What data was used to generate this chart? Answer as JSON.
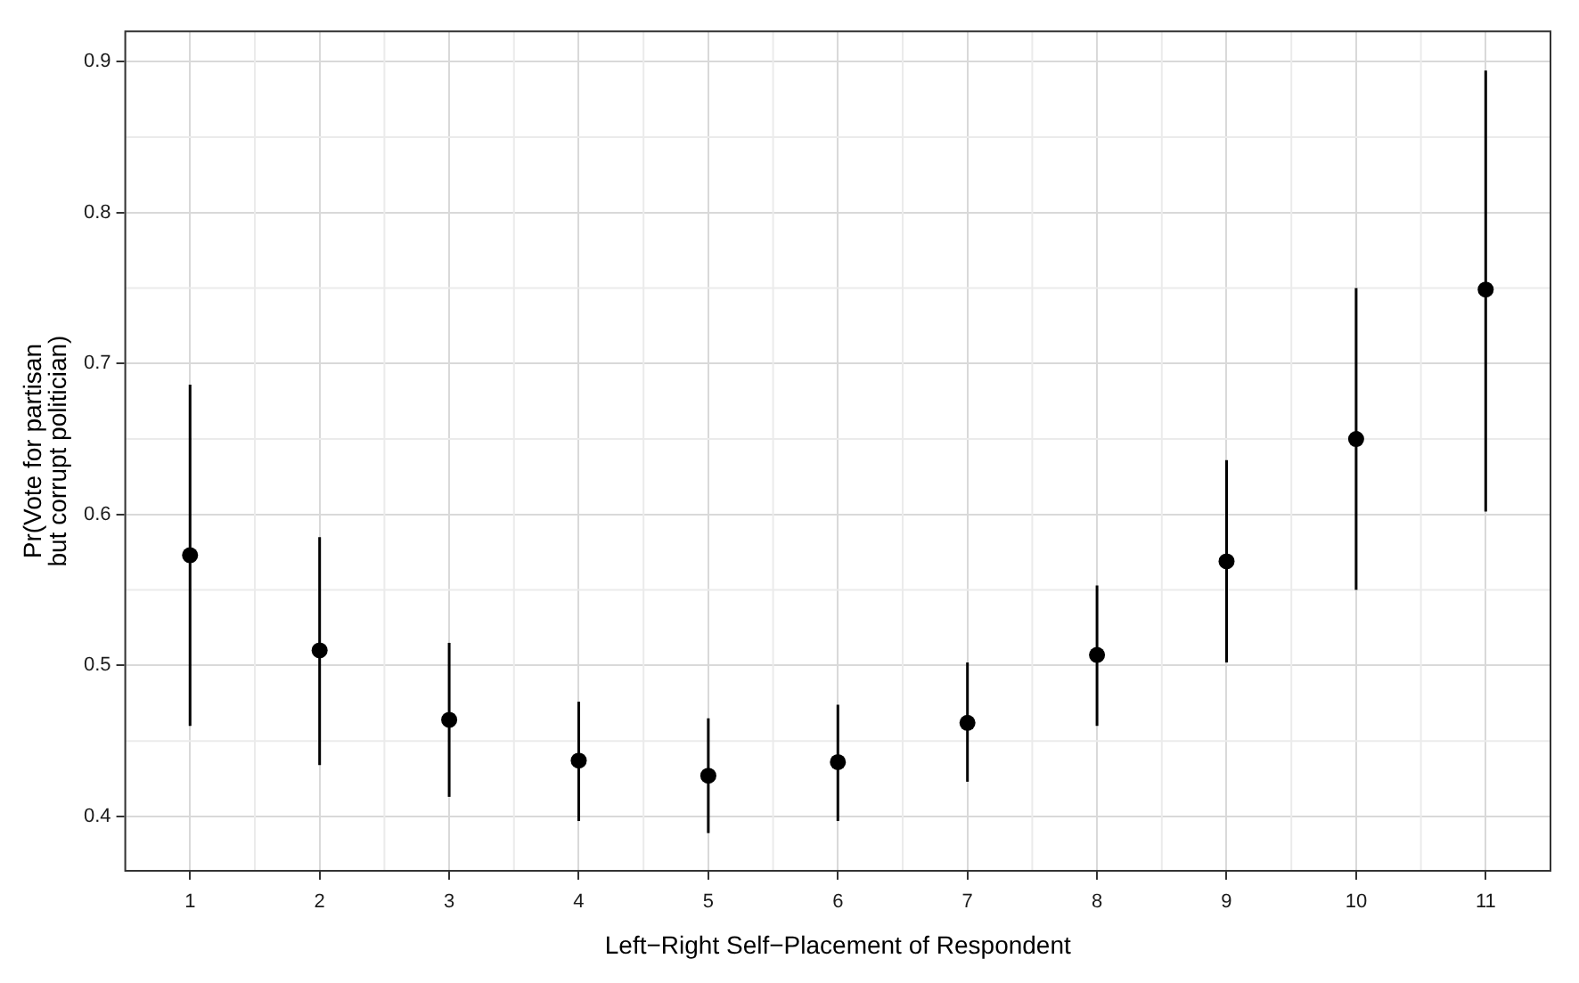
{
  "chart_data": {
    "type": "scatter",
    "xlabel": "Left−Right Self−Placement of Respondent",
    "ylabel": "Pr(Vote for partisan\nbut corrupt politician)",
    "categories": [
      "1",
      "2",
      "3",
      "4",
      "5",
      "6",
      "7",
      "8",
      "9",
      "10",
      "11"
    ],
    "series": [
      {
        "color": "#000000",
        "values": [
          0.573,
          0.51,
          0.464,
          0.437,
          0.427,
          0.436,
          0.462,
          0.507,
          0.569,
          0.65,
          0.749
        ],
        "errors": [
          [
            0.46,
            0.686
          ],
          [
            0.434,
            0.585
          ],
          [
            0.413,
            0.515
          ],
          [
            0.397,
            0.476
          ],
          [
            0.389,
            0.465
          ],
          [
            0.397,
            0.474
          ],
          [
            0.423,
            0.502
          ],
          [
            0.46,
            0.553
          ],
          [
            0.502,
            0.636
          ],
          [
            0.55,
            0.75
          ],
          [
            0.602,
            0.894
          ]
        ]
      }
    ],
    "ylim": [
      0.364,
      0.92
    ],
    "yticks": [
      0.4,
      0.5,
      0.6,
      0.7,
      0.8,
      0.9
    ],
    "grid": true,
    "marker": "circle",
    "legend": false
  }
}
